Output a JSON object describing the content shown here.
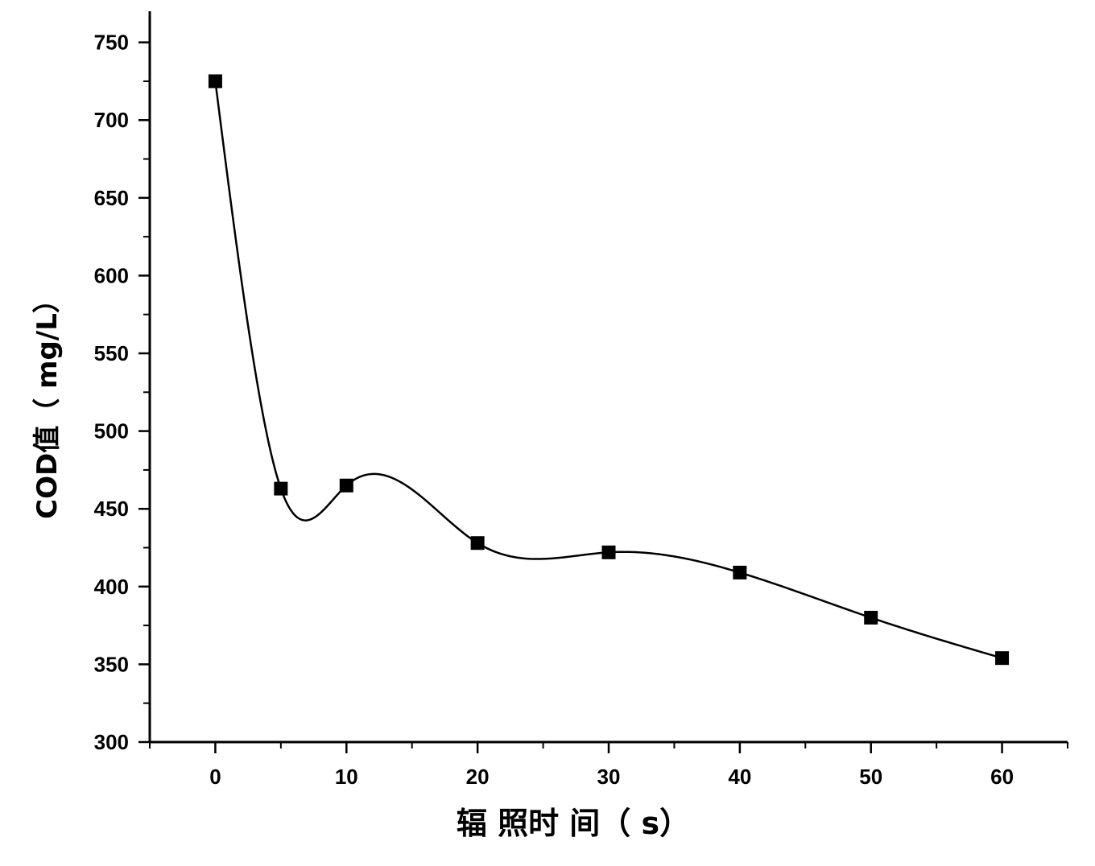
{
  "chart_data": {
    "type": "line",
    "title": "",
    "xlabel": "辐 照时 间（ s）",
    "ylabel": "COD值（ mg/L）",
    "xlim": [
      -5,
      65
    ],
    "ylim": [
      300,
      770
    ],
    "x_ticks": [
      0,
      10,
      20,
      30,
      40,
      50,
      60
    ],
    "x_tick_labels": [
      "0",
      "10",
      "20",
      "30",
      "40",
      "50",
      "60"
    ],
    "y_ticks": [
      300,
      350,
      400,
      450,
      500,
      550,
      600,
      650,
      700,
      750
    ],
    "y_tick_labels": [
      "300",
      "350",
      "400",
      "450",
      "500",
      "550",
      "600",
      "650",
      "700",
      "750"
    ],
    "grid": false,
    "legend": "none",
    "series": [
      {
        "marker": "square",
        "line": "smooth-spline",
        "color": "#000000",
        "x": [
          0,
          5,
          10,
          20,
          30,
          40,
          50,
          60
        ],
        "y": [
          725,
          463,
          465,
          428,
          422,
          409,
          380,
          354
        ]
      }
    ]
  }
}
